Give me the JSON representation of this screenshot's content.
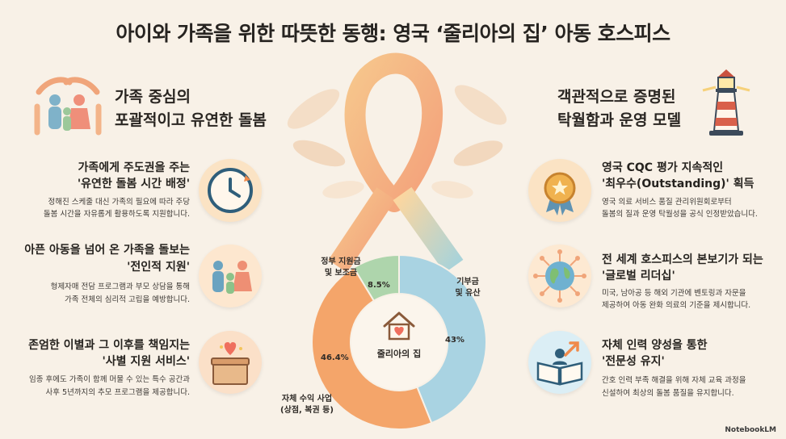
{
  "title": "아이와 가족을 위한 따뜻한 동행: 영국 ‘줄리아의 집’ 아동 호스피스",
  "left_section": {
    "title_line1": "가족 중심의",
    "title_line2": "포괄적이고 유연한 돌봄",
    "icon": "family-hands-icon",
    "items": [
      {
        "head_line1": "가족에게 주도권을 주는",
        "head_line2": "'유연한 돌봄 시간 배정'",
        "desc_line1": "정해진 스케줄 대신 가족의 필요에 따라 주당",
        "desc_line2": "돌봄 시간을 자유롭게 활용하도록 지원합니다.",
        "icon": "clock-icon"
      },
      {
        "head_line1": "아픈 아동을 넘어 온 가족을 돌보는",
        "head_line2": "'전인적 지원'",
        "desc_line1": "형제자매 전담 프로그램과 부모 상담을 통해",
        "desc_line2": "가족 전체의 심리적 고립을 예방합니다.",
        "icon": "family-icon"
      },
      {
        "head_line1": "존엄한 이별과 그 이후를 책임지는",
        "head_line2": "'사별 지원 서비스'",
        "desc_line1": "임종 후에도 가족이 함께 머물 수 있는 특수 공간과",
        "desc_line2": "사후 5년까지의 추모 프로그램을 제공합니다.",
        "icon": "memory-box-icon"
      }
    ]
  },
  "right_section": {
    "title_line1": "객관적으로 증명된",
    "title_line2": "탁월함과 운영 모델",
    "icon": "lighthouse-icon",
    "items": [
      {
        "head_line1": "영국 CQC 평가 지속적인",
        "head_line2": "'최우수(Outstanding)' 획득",
        "desc_line1": "영국 의료 서비스 품질 관리위원회로부터",
        "desc_line2": "돌봄의 질과 운영 탁월성을 공식 인정받았습니다.",
        "icon": "award-medal-icon"
      },
      {
        "head_line1": "전 세계 호스피스의 본보기가 되는",
        "head_line2": "'글로벌 리더십'",
        "desc_line1": "미국, 남아공 등 해외 기관에 벤토링과 자문을",
        "desc_line2": "제공하여 아동 완화 의료의 기준을 제시합니다.",
        "icon": "globe-network-icon"
      },
      {
        "head_line1": "자체 인력 양성을 통한",
        "head_line2": "'전문성 유지'",
        "desc_line1": "간호 인력 부족 해결을 위해 자체 교육 과정을",
        "desc_line2": "신설하여 최상의 돌봄 품질을 유지합니다.",
        "icon": "book-growth-icon"
      }
    ]
  },
  "funding": {
    "center_label": "줄리아의 집",
    "center_icon": "house-heart-icon",
    "ribbon_icon": "ribbon-icon",
    "segments": [
      {
        "label_line1": "기부금",
        "label_line2": "및 유산",
        "value": 43,
        "pct_text": "43%",
        "color": "#a9d3e2"
      },
      {
        "label_line1": "자체 수익 사업",
        "label_line2": "(상점, 복권 등)",
        "value": 46.4,
        "pct_text": "46.4%",
        "color": "#f4a56a"
      },
      {
        "label_line1": "정부 지원금",
        "label_line2": "및 보조금",
        "value": 8.5,
        "pct_text": "8.5%",
        "color": "#aed5ac"
      }
    ]
  },
  "brand": "NotebookLM"
}
